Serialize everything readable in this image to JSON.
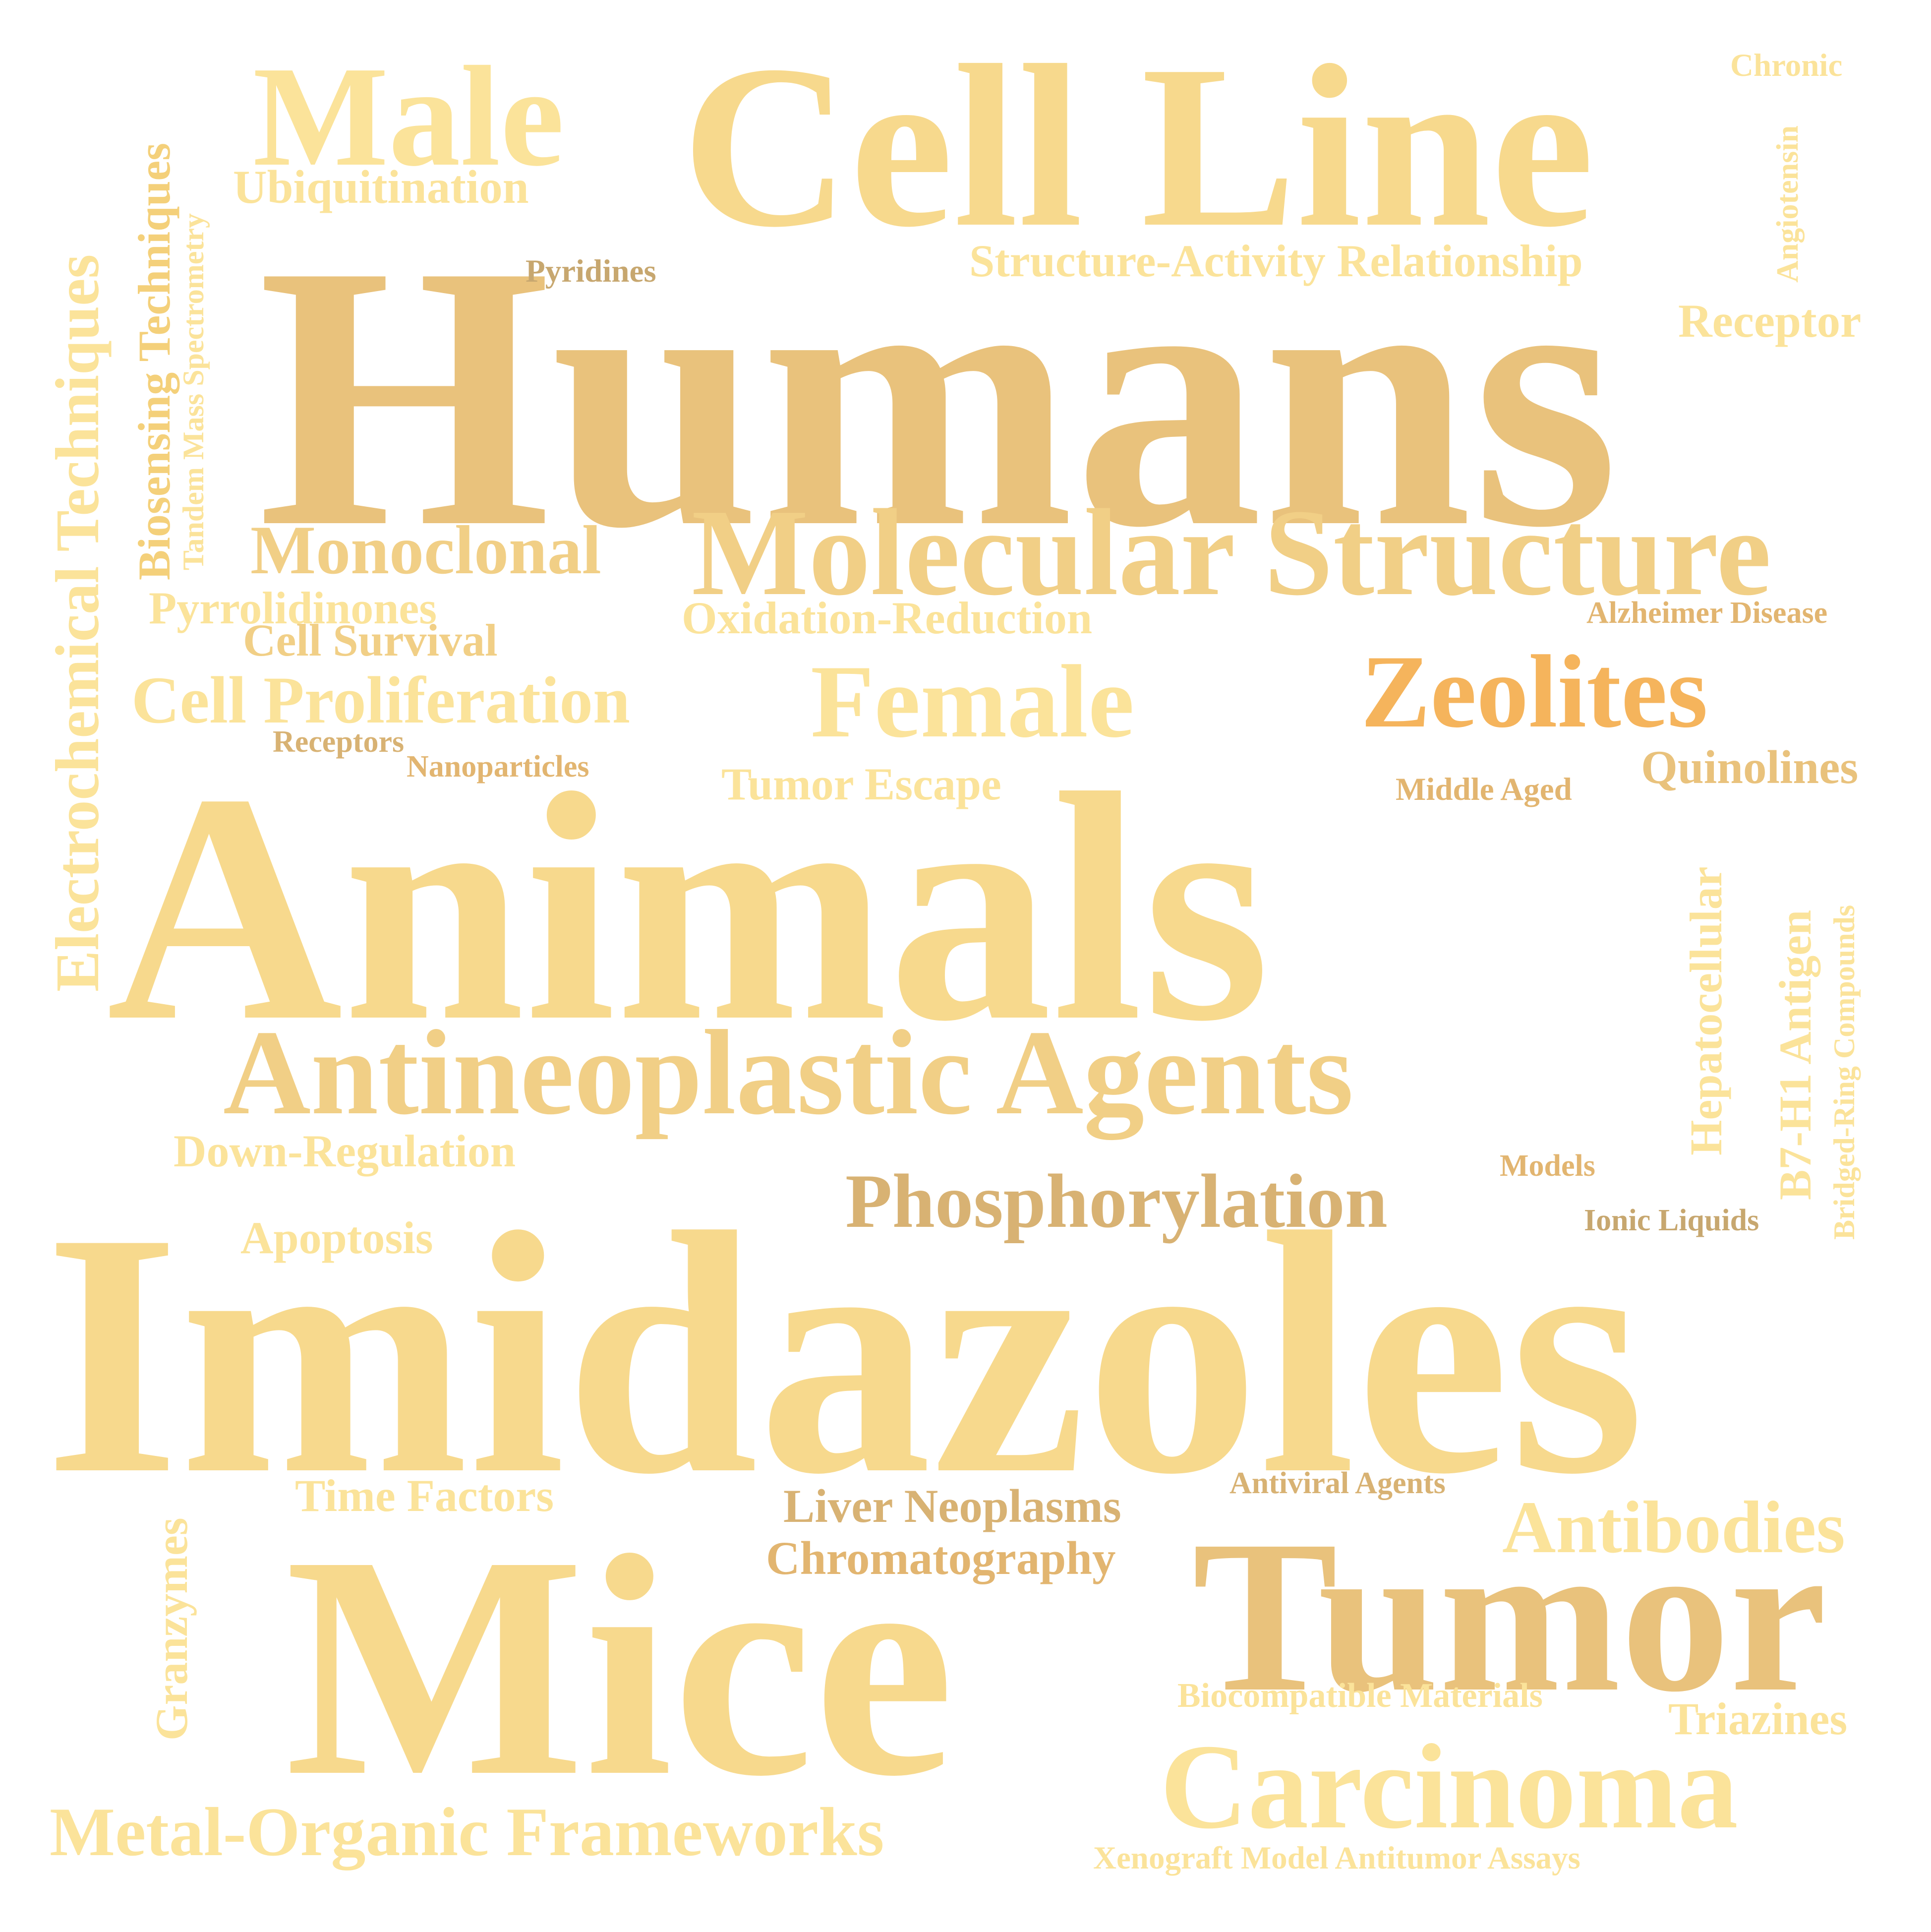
{
  "words": {
    "humans": "Humans",
    "animals": "Animals",
    "imidazoles": "Imidazoles",
    "mice": "Mice",
    "cell_line": "Cell Line",
    "male": "Male",
    "tumor": "Tumor",
    "molecular_structure": "Molecular Structure",
    "antineoplastic_agents": "Antineoplastic Agents",
    "carcinoma": "Carcinoma",
    "zeolites": "Zeolites",
    "female": "Female",
    "phosphorylation": "Phosphorylation",
    "antibodies": "Antibodies",
    "metal_organic_frameworks": "Metal-Organic Frameworks",
    "electrochemical_techniques": "Electrochemical Techniques",
    "cell_proliferation": "Cell Proliferation",
    "monoclonal": "Monoclonal",
    "ubiquitination": "Ubiquitination",
    "structure_activity": "Structure-Activity Relationship",
    "receptor": "Receptor",
    "quinolines": "Quinolines",
    "oxidation_reduction": "Oxidation-Reduction",
    "pyrrolidinones": "Pyrrolidinones",
    "cell_survival": "Cell Survival",
    "tumor_escape": "Tumor Escape",
    "down_regulation": "Down-Regulation",
    "apoptosis": "Apoptosis",
    "time_factors": "Time Factors",
    "liver_neoplasms": "Liver Neoplasms",
    "chromatography": "Chromatography",
    "triazines": "Triazines",
    "biocompatible_materials": "Biocompatible Materials",
    "xenograft": "Xenograft Model Antitumor Assays",
    "granzymes": "Granzymes",
    "biosensing_techniques": "Biosensing Techniques",
    "tandem_mass": "Tandem Mass Spectrometry",
    "pyridines": "Pyridines",
    "chronic": "Chronic",
    "angiotensin": "Angiotensin",
    "alzheimer": "Alzheimer Disease",
    "receptors": "Receptors",
    "nanoparticles": "Nanoparticles",
    "middle_aged": "Middle Aged",
    "hepatocellular": "Hepatocellular",
    "b7h1": "B7-H1 Antigen",
    "bridged_ring": "Bridged-Ring Compounds",
    "models": "Models",
    "ionic_liquids": "Ionic Liquids",
    "antiviral_agents": "Antiviral Agents"
  },
  "colors": {
    "pale": "#fbe39a",
    "sand": "#f7d98d",
    "wheat": "#f1cf86",
    "tan": "#e9c27c",
    "honey": "#e2b570",
    "orange": "#f5b45c",
    "khaki": "#d8b273",
    "olive": "#c7a76f"
  }
}
